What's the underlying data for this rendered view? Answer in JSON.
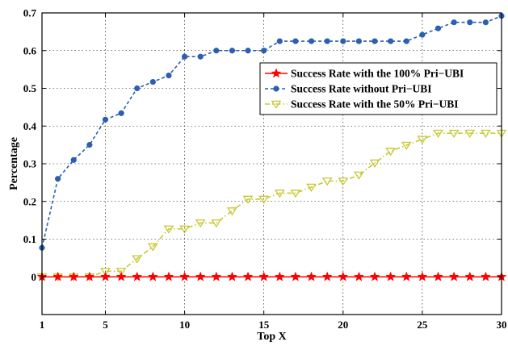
{
  "chart_data": {
    "type": "line",
    "xlabel": "Top X",
    "ylabel": "Percentage",
    "xlim": [
      1,
      30
    ],
    "ylim": [
      -0.1,
      0.7
    ],
    "x_ticks": [
      1,
      5,
      10,
      15,
      20,
      25,
      30
    ],
    "y_ticks": [
      0,
      0.1,
      0.2,
      0.3,
      0.4,
      0.5,
      0.6,
      0.7
    ],
    "y_tick_labels": [
      "0",
      "0.1",
      "0.2",
      "0.3",
      "0.4",
      "0.5",
      "0.6",
      "0.7"
    ],
    "grid": true,
    "legend_position": "upper-right",
    "x": [
      1,
      2,
      3,
      4,
      5,
      6,
      7,
      8,
      9,
      10,
      11,
      12,
      13,
      14,
      15,
      16,
      17,
      18,
      19,
      20,
      21,
      22,
      23,
      24,
      25,
      26,
      27,
      28,
      29,
      30
    ],
    "series": [
      {
        "name": "Success Rate with the 100% Pri−UBI",
        "color": "#ff0000",
        "marker": "star",
        "line": "solid",
        "values": [
          0,
          0,
          0,
          0,
          0,
          0,
          0,
          0,
          0,
          0,
          0,
          0,
          0,
          0,
          0,
          0,
          0,
          0,
          0,
          0,
          0,
          0,
          0,
          0,
          0,
          0,
          0,
          0,
          0,
          0
        ]
      },
      {
        "name": "Success Rate without Pri−UBI",
        "color": "#2c5fb0",
        "marker": "circle",
        "line": "dashed",
        "values": [
          0.077,
          0.26,
          0.31,
          0.35,
          0.417,
          0.434,
          0.5,
          0.517,
          0.534,
          0.584,
          0.584,
          0.6,
          0.6,
          0.6,
          0.6,
          0.625,
          0.625,
          0.625,
          0.625,
          0.625,
          0.625,
          0.625,
          0.625,
          0.625,
          0.642,
          0.659,
          0.675,
          0.675,
          0.675,
          0.692
        ]
      },
      {
        "name": "Success Rate with the 50% Pri−UBI",
        "color": "#c8c832",
        "marker": "triangle-down",
        "line": "dashdot",
        "values": [
          0,
          0,
          0,
          0,
          0.015,
          0.015,
          0.048,
          0.08,
          0.127,
          0.127,
          0.143,
          0.143,
          0.175,
          0.206,
          0.206,
          0.222,
          0.222,
          0.238,
          0.254,
          0.254,
          0.27,
          0.302,
          0.333,
          0.349,
          0.365,
          0.381,
          0.381,
          0.381,
          0.381,
          0.381
        ]
      }
    ]
  }
}
